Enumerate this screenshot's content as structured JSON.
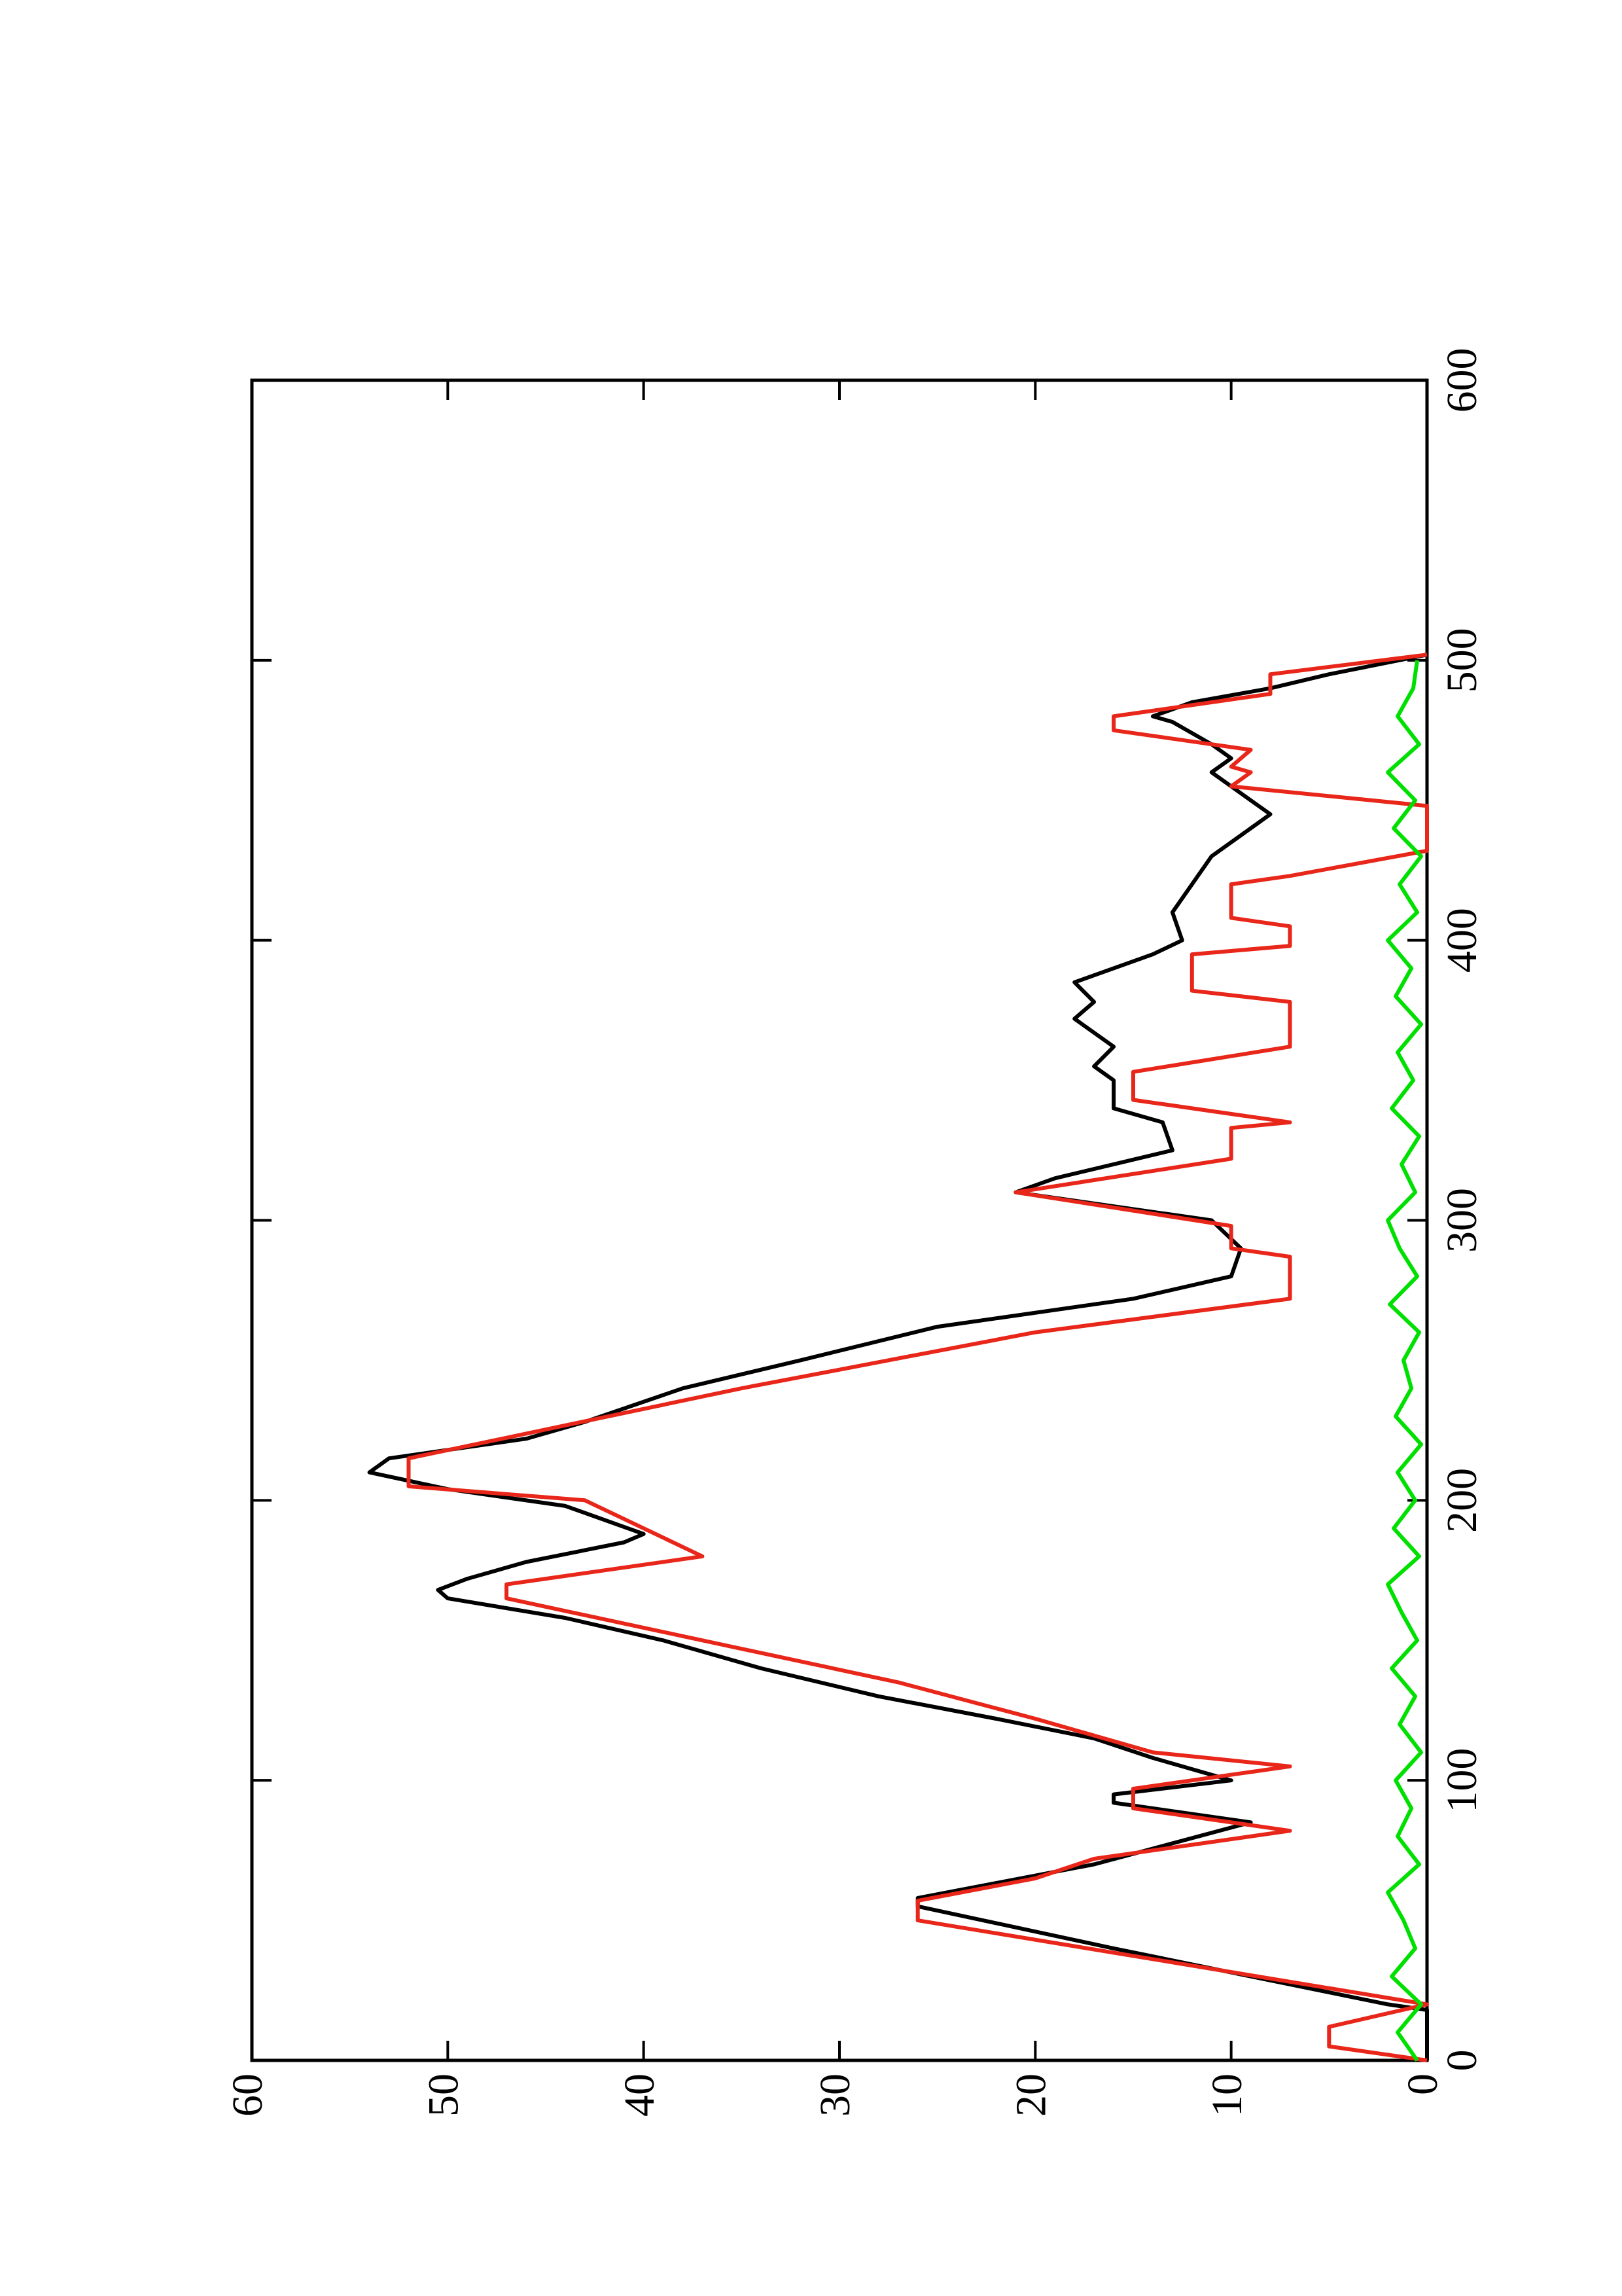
{
  "chart_data": {
    "type": "line",
    "xlim": [
      0,
      600
    ],
    "xticks": [
      0,
      100,
      200,
      300,
      400,
      500,
      600
    ],
    "ylim": [
      0,
      60
    ],
    "yticks": [
      0,
      10,
      20,
      30,
      40,
      50,
      60
    ],
    "rotated": true,
    "series": [
      {
        "color": "#000000",
        "x": [
          0,
          18,
          20,
          30,
          40,
          55,
          58,
          70,
          85,
          92,
          95,
          100,
          108,
          115,
          122,
          130,
          140,
          150,
          158,
          165,
          168,
          172,
          178,
          185,
          188,
          198,
          204,
          210,
          215,
          222,
          228,
          240,
          250,
          262,
          272,
          280,
          290,
          300,
          310,
          315,
          325,
          335,
          340,
          350,
          355,
          362,
          372,
          378,
          385,
          395,
          400,
          410,
          420,
          430,
          440,
          445,
          450,
          455,
          460,
          465,
          470,
          478,
          480,
          485,
          490,
          495,
          502
        ],
        "values": [
          0,
          0,
          2,
          9,
          16,
          26,
          26,
          17,
          9,
          16,
          16,
          10,
          14,
          17,
          22,
          28,
          34,
          39,
          44,
          50,
          50.5,
          49,
          46,
          41,
          40,
          44,
          50,
          54,
          53,
          46,
          43,
          38,
          32,
          25,
          15,
          10,
          9.5,
          11,
          21,
          19,
          13,
          13.5,
          16,
          16,
          17,
          16,
          18,
          17,
          18,
          14,
          12.5,
          13,
          12,
          11,
          9,
          8,
          9,
          10,
          11,
          10,
          11,
          13,
          14,
          12,
          8,
          5,
          0
        ]
      },
      {
        "color": "#e8261a",
        "x": [
          0,
          5,
          12,
          20,
          50,
          57,
          65,
          72,
          82,
          90,
          97,
          105,
          110,
          122,
          135,
          150,
          165,
          170,
          180,
          190,
          200,
          205,
          215,
          240,
          260,
          272,
          287,
          290,
          298,
          310,
          322,
          333,
          335,
          343,
          353,
          362,
          378,
          382,
          395,
          398,
          405,
          408,
          420,
          423,
          432,
          448,
          455,
          460,
          462,
          468,
          475,
          480,
          488,
          495,
          502
        ],
        "values": [
          0,
          5,
          5,
          0,
          26,
          26,
          20,
          17,
          7,
          15,
          15,
          7,
          14,
          20,
          27,
          37,
          47,
          47,
          37,
          40,
          43,
          52,
          52,
          35,
          20,
          7,
          7,
          10,
          10,
          21,
          10,
          10,
          7,
          15,
          15,
          7,
          7,
          12,
          12,
          7,
          7,
          10,
          10,
          7,
          0,
          0,
          10,
          9,
          10,
          9,
          16,
          16,
          8,
          8,
          0
        ]
      },
      {
        "color": "#00e000",
        "x": [
          0,
          10,
          20,
          30,
          40,
          50,
          60,
          70,
          80,
          90,
          100,
          110,
          120,
          130,
          140,
          150,
          160,
          170,
          180,
          190,
          200,
          210,
          220,
          230,
          240,
          250,
          260,
          270,
          280,
          290,
          300,
          310,
          320,
          330,
          340,
          350,
          360,
          370,
          380,
          390,
          400,
          410,
          420,
          430,
          440,
          450,
          460,
          470,
          480,
          490,
          500
        ],
        "values": [
          0.5,
          1.5,
          0.3,
          1.8,
          0.6,
          1.2,
          2,
          0.4,
          1.5,
          0.8,
          1.6,
          0.3,
          1.4,
          0.6,
          1.8,
          0.5,
          1.3,
          2,
          0.4,
          1.7,
          0.6,
          1.5,
          0.3,
          1.6,
          0.8,
          1.2,
          0.4,
          1.9,
          0.5,
          1.4,
          2,
          0.6,
          1.3,
          0.4,
          1.8,
          0.7,
          1.5,
          0.3,
          1.6,
          0.8,
          2,
          0.5,
          1.4,
          0.3,
          1.7,
          0.6,
          2,
          0.4,
          1.5,
          0.7,
          0.5
        ]
      }
    ]
  }
}
